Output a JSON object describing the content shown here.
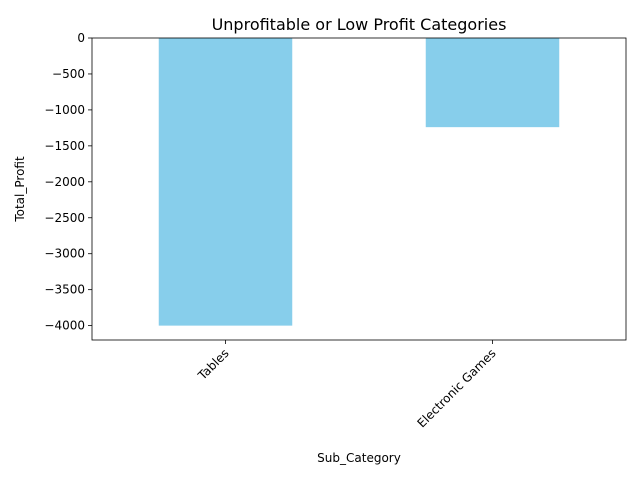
{
  "chart_data": {
    "type": "bar",
    "title": "Unprofitable or Low Profit Categories",
    "xlabel": "Sub_Category",
    "ylabel": "Total_Profit",
    "categories": [
      "Tables",
      "Electronic Games"
    ],
    "values": [
      -4000,
      -1240
    ],
    "ylim": [
      -4200,
      0
    ],
    "yticks": [
      0,
      -500,
      -1000,
      -1500,
      -2000,
      -2500,
      -3000,
      -3500,
      -4000
    ],
    "ytick_labels": [
      "0",
      "−500",
      "−1000",
      "−1500",
      "−2000",
      "−2500",
      "−3000",
      "−3500",
      "−4000"
    ],
    "xtick_rotation_deg": 45,
    "grid": false,
    "legend": "none",
    "bar_color": "#87CEEB"
  }
}
